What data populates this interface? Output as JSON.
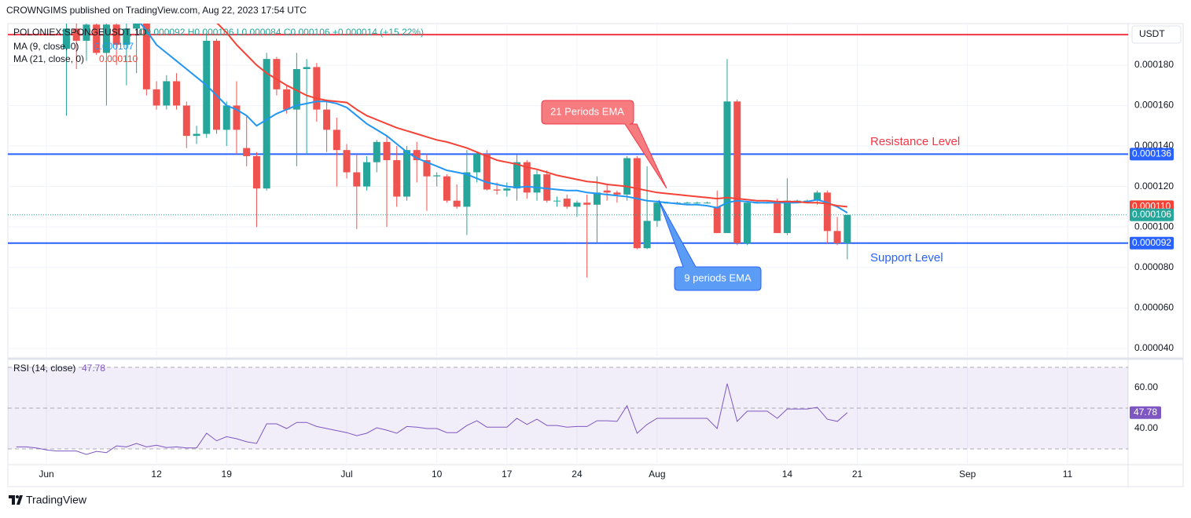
{
  "header": {
    "publisher": "CROWNGIMS published on TradingView.com, Aug 22, 2023 17:54 UTC"
  },
  "footer": {
    "brand": "TradingView"
  },
  "chart_data": {
    "type": "candlestick",
    "symbol": "POLONIEX:SPONGEUSDT, 1D",
    "ohlc_legend": "O0.000092 H0.000106 L0.000084 C0.000106 +0.000014 (+15.22%)",
    "currency": "USDT",
    "categories": [
      null,
      null,
      null,
      "Jun",
      null,
      null,
      null,
      null,
      null,
      null,
      null,
      null,
      null,
      null,
      "12",
      null,
      null,
      null,
      null,
      null,
      null,
      "19",
      null,
      null,
      null,
      null,
      null,
      null,
      null,
      null,
      null,
      null,
      null,
      "Jul",
      null,
      null,
      null,
      null,
      null,
      null,
      null,
      null,
      "10",
      null,
      null,
      null,
      null,
      null,
      null,
      "17",
      null,
      null,
      null,
      null,
      null,
      null,
      "24",
      null,
      null,
      null,
      null,
      null,
      null,
      null,
      "Aug",
      null,
      null,
      null,
      null,
      null,
      null,
      null,
      null,
      null,
      null,
      null,
      null,
      "14",
      null,
      null,
      null,
      null,
      null,
      null,
      "21",
      null,
      null,
      null,
      null,
      null,
      null,
      null,
      null,
      null,
      null,
      "Sep",
      null,
      null,
      null,
      null,
      null,
      null,
      null,
      null,
      null,
      "11",
      null,
      null,
      null,
      null,
      null,
      null
    ],
    "open": [
      null,
      null,
      null,
      null,
      null,
      0.000188,
      0.000198,
      0.000192,
      0.0002,
      0.000186,
      0.0002,
      0.00019,
      0.000198,
      0.000204,
      0.000168,
      0.00016,
      0.000172,
      0.00016,
      0.000145,
      0.000146,
      0.000192,
      0.000148,
      0.00016,
      0.000139,
      0.000135,
      0.000119,
      0.000183,
      0.000168,
      0.000158,
      0.000178,
      0.000179,
      0.000158,
      0.000148,
      0.000138,
      0.000127,
      0.00012,
      0.000132,
      0.000142,
      0.000133,
      0.000115,
      0.000138,
      0.000133,
      0.000125,
      0.000125,
      0.000113,
      0.00011,
      0.000127,
      0.000136,
      0.0001185,
      0.000118,
      0.000119,
      0.000132,
      0.000117,
      0.000126,
      0.000113,
      0.000114,
      0.00011,
      0.000112,
      0.000111,
      0.000118,
      0.000117,
      0.000116,
      0.000134,
      8.95e-05,
      0.000103,
      0.000112,
      0.000112,
      0.000112,
      0.000112,
      0.000112,
      0.00011,
      9.7e-05,
      0.000162,
      9.2e-05,
      0.000112,
      0.000112,
      0.000112,
      9.7e-05,
      0.000113,
      0.000113,
      0.000113,
      0.000117,
      9.8e-05,
      9.2e-05,
      null,
      null,
      null,
      null,
      null,
      null,
      null,
      null,
      null,
      null,
      null,
      null,
      null,
      null,
      null,
      null,
      null,
      null,
      null,
      null,
      null,
      null,
      null,
      null,
      null,
      null,
      null,
      null
    ],
    "high": [
      null,
      null,
      null,
      null,
      null,
      0.000205,
      0.000206,
      0.000205,
      0.00021,
      0.000205,
      0.000208,
      0.000206,
      0.000208,
      0.000208,
      0.000172,
      0.000175,
      0.000176,
      0.000162,
      0.00015,
      0.000195,
      0.000193,
      0.000162,
      0.000172,
      0.000155,
      0.000137,
      0.000186,
      0.000184,
      0.00017,
      0.000186,
      0.000183,
      0.000181,
      0.000163,
      0.000154,
      0.000141,
      0.000136,
      0.000135,
      0.000143,
      0.000145,
      0.00014,
      0.00014,
      0.000142,
      0.000136,
      0.000127,
      0.000126,
      0.000121,
      0.000138,
      0.000137,
      0.000138,
      0.000122,
      0.000122,
      0.000136,
      0.000133,
      0.000128,
      0.000128,
      0.000115,
      0.000116,
      0.000113,
      0.000116,
      0.000125,
      0.000121,
      0.000118,
      0.000135,
      0.000135,
      0.00013,
      0.000113,
      0.0001125,
      0.0001125,
      0.0001125,
      0.0001125,
      0.0001125,
      0.000118,
      0.000183,
      0.000163,
      0.000112,
      0.0001125,
      0.0001125,
      0.000114,
      0.000124,
      0.0001135,
      0.0001135,
      0.000118,
      0.000118,
      0.000105,
      0.000106,
      null,
      null,
      null,
      null,
      null,
      null,
      null,
      null,
      null,
      null,
      null,
      null,
      null,
      null,
      null,
      null,
      null,
      null,
      null,
      null,
      null,
      null,
      null,
      null,
      null,
      null,
      null,
      null
    ],
    "low": [
      null,
      null,
      null,
      null,
      null,
      0.000155,
      0.000178,
      0.000182,
      0.000185,
      0.00016,
      0.00018,
      0.00017,
      0.000176,
      0.000165,
      0.000158,
      0.000158,
      0.000158,
      0.000139,
      0.000141,
      0.000144,
      0.000146,
      0.00014,
      0.000136,
      0.00013,
      0.0001,
      0.000118,
      0.000165,
      0.000156,
      0.00013,
      0.000136,
      0.000152,
      0.000137,
      0.00012,
      0.000124,
      9.9e-05,
      0.000118,
      0.000127,
      0.0001,
      0.00011,
      0.000113,
      0.000122,
      0.000108,
      0.00012,
      0.000112,
      0.000109,
      9.6e-05,
      0.000122,
      0.000118,
      0.000116,
      0.000115,
      0.000113,
      0.000114,
      0.000113,
      0.000112,
      0.00011,
      0.000109,
      0.000105,
      7.5e-05,
      9.2e-05,
      0.000113,
      0.000112,
      0.000113,
      8.9e-05,
      8.9e-05,
      0.0001,
      0.0001115,
      0.0001115,
      0.0001115,
      0.0001115,
      0.0001115,
      9.7e-05,
      9.7e-05,
      9.1e-05,
      9.1e-05,
      0.0001115,
      0.0001115,
      9.7e-05,
      9.6e-05,
      0.0001125,
      0.0001125,
      0.000111,
      9.2e-05,
      9.1e-05,
      8.4e-05,
      null,
      null,
      null,
      null,
      null,
      null,
      null,
      null,
      null,
      null,
      null,
      null,
      null,
      null,
      null,
      null,
      null,
      null,
      null,
      null,
      null,
      null,
      null,
      null,
      null,
      null,
      null,
      null
    ],
    "close": [
      null,
      null,
      null,
      null,
      null,
      0.000198,
      0.000192,
      0.0002,
      0.000186,
      0.0002,
      0.00019,
      0.000198,
      0.000205,
      0.000168,
      0.00016,
      0.000172,
      0.00016,
      0.000145,
      0.000146,
      0.000192,
      0.000148,
      0.00016,
      0.000148,
      0.000135,
      0.000119,
      0.000183,
      0.000168,
      0.000158,
      0.000178,
      0.000179,
      0.000158,
      0.000148,
      0.000138,
      0.000127,
      0.00012,
      0.000132,
      0.000142,
      0.000133,
      0.000115,
      0.000138,
      0.000133,
      0.000125,
      0.0001255,
      0.000113,
      0.00011,
      0.000127,
      0.000136,
      0.0001185,
      0.000118,
      0.000119,
      0.000132,
      0.000117,
      0.000126,
      0.000113,
      0.000113,
      0.00011,
      0.000112,
      0.000111,
      0.000117,
      0.000117,
      0.000116,
      0.000134,
      8.95e-05,
      0.000103,
      0.000112,
      0.000112,
      0.000112,
      0.000112,
      0.000112,
      0.000112,
      9.7e-05,
      0.000162,
      9.2e-05,
      0.000112,
      0.000112,
      0.000112,
      9.7e-05,
      0.000113,
      0.000113,
      0.000113,
      0.000117,
      9.8e-05,
      9.2e-05,
      0.000106,
      null,
      null,
      null,
      null,
      null,
      null,
      null,
      null,
      null,
      null,
      null,
      null,
      null,
      null,
      null,
      null,
      null,
      null,
      null,
      null,
      null,
      null,
      null,
      null,
      null,
      null,
      null,
      null
    ],
    "close_label": "0.000106",
    "up_color": "#26a69a",
    "down_color": "#ef5350",
    "series": [
      {
        "name": "MA (9, close, 0)",
        "color": "#2196f3",
        "value_label": "0.000107",
        "values": [
          null,
          null,
          null,
          null,
          null,
          null,
          null,
          null,
          null,
          null,
          null,
          null,
          0.000203,
          0.000197,
          0.00019,
          0.000186,
          0.000182,
          0.000178,
          0.000174,
          0.00017,
          0.000165,
          0.00016,
          0.000158,
          0.000155,
          0.00015,
          0.000153,
          0.000156,
          0.000158,
          0.00016,
          0.000161,
          0.000162,
          0.000162,
          0.000161,
          0.000159,
          0.000155,
          0.000151,
          0.000148,
          0.000145,
          0.000141,
          0.000137,
          0.000134,
          0.000132,
          0.00013,
          0.000128,
          0.000127,
          0.000126,
          0.000124,
          0.000122,
          0.000121,
          0.00012,
          0.0001195,
          0.00012,
          0.0001195,
          0.000119,
          0.0001185,
          0.000118,
          0.000118,
          0.000117,
          0.0001165,
          0.000116,
          0.0001155,
          0.000115,
          0.000114,
          0.000113,
          0.0001125,
          0.000112,
          0.0001115,
          0.000111,
          0.000111,
          0.0001105,
          0.0001095,
          0.000112,
          0.000113,
          0.0001125,
          0.000112,
          0.000112,
          0.000112,
          0.000112,
          0.000112,
          0.0001125,
          0.0001135,
          0.000112,
          0.00011,
          0.000107,
          null,
          null,
          null,
          null,
          null,
          null,
          null,
          null,
          null,
          null,
          null,
          null,
          null,
          null,
          null,
          null,
          null,
          null,
          null,
          null,
          null,
          null,
          null,
          null,
          null,
          null,
          null,
          null
        ]
      },
      {
        "name": "MA (21, close, 0)",
        "color": "#f44336",
        "value_label": "0.000110",
        "values": [
          null,
          null,
          null,
          null,
          null,
          null,
          null,
          null,
          null,
          null,
          null,
          null,
          null,
          null,
          null,
          null,
          null,
          null,
          null,
          null,
          0.000201,
          0.000196,
          0.00019,
          0.000185,
          0.00018,
          0.000176,
          0.000173,
          0.00017,
          0.0001675,
          0.000165,
          0.0001635,
          0.0001625,
          0.000162,
          0.0001615,
          0.000158,
          0.000155,
          0.000153,
          0.000151,
          0.000149,
          0.0001475,
          0.000146,
          0.0001445,
          0.000143,
          0.000142,
          0.0001405,
          0.000139,
          0.000137,
          0.000135,
          0.000133,
          0.000132,
          0.000131,
          0.0001295,
          0.0001285,
          0.000127,
          0.0001255,
          0.0001245,
          0.0001235,
          0.0001225,
          0.000122,
          0.000121,
          0.0001205,
          0.00012,
          0.000119,
          0.000118,
          0.000117,
          0.0001165,
          0.000116,
          0.0001155,
          0.000115,
          0.0001145,
          0.000114,
          0.0001145,
          0.000114,
          0.0001135,
          0.000113,
          0.000113,
          0.0001125,
          0.0001125,
          0.0001125,
          0.000112,
          0.000112,
          0.0001115,
          0.0001105,
          0.00011,
          null,
          null,
          null,
          null,
          null,
          null,
          null,
          null,
          null,
          null,
          null,
          null,
          null,
          null,
          null,
          null,
          null,
          null,
          null,
          null,
          null,
          null,
          null,
          null,
          null,
          null,
          null,
          null
        ]
      }
    ],
    "ylim": [
      3.57e-05,
      0.0002005
    ],
    "yticks": [
      {
        "value": 4e-05,
        "label": "0.000040"
      },
      {
        "value": 6e-05,
        "label": "0.000060"
      },
      {
        "value": 8e-05,
        "label": "0.000080"
      },
      {
        "value": 0.0001,
        "label": "0.000100"
      },
      {
        "value": 0.00012,
        "label": "0.000120"
      },
      {
        "value": 0.00014,
        "label": "0.000140"
      },
      {
        "value": 0.00016,
        "label": "0.000160"
      },
      {
        "value": 0.00018,
        "label": "0.000180"
      }
    ],
    "grid": true,
    "hlines": [
      {
        "value": 0.000195,
        "color": "#f23645"
      },
      {
        "value": 0.000136,
        "color": "#2962ff",
        "label": "0.000136"
      },
      {
        "value": 9.2e-05,
        "color": "#2962ff",
        "label": "0.000092"
      }
    ],
    "annotations": [
      {
        "text": "21 Periods EMA",
        "color": "#f77c80"
      },
      {
        "text": "9 periods EMA",
        "color": "#5b9cf6"
      },
      {
        "text": "Resistance Level",
        "color": "#f23645"
      },
      {
        "text": "Support Level",
        "color": "#2962ff"
      }
    ],
    "rsi": {
      "name": "RSI (14, close)",
      "color": "#7e57c2",
      "values": [
        31,
        31,
        30.5,
        29.5,
        29,
        29,
        29,
        27.3,
        28.8,
        28.2,
        31.5,
        31,
        32.7,
        31,
        31.8,
        30.7,
        31,
        30.5,
        30.5,
        37.7,
        34,
        36,
        35,
        33.5,
        32.7,
        42.3,
        42.3,
        40,
        43,
        43,
        41,
        40,
        39,
        38,
        36.5,
        37.7,
        40.4,
        39.2,
        37.7,
        41,
        40.7,
        40,
        40,
        38,
        38,
        41.5,
        43.8,
        40.7,
        40.7,
        40.7,
        45,
        42,
        44.6,
        41.5,
        41.5,
        40.7,
        41,
        41,
        43.8,
        43.8,
        43.5,
        51.2,
        37.7,
        42,
        45,
        45,
        45,
        45,
        45,
        45,
        40,
        62,
        43.5,
        48.5,
        48.5,
        48.5,
        45,
        49.6,
        49.6,
        49.6,
        50.4,
        44.6,
        43.5,
        47.78,
        null,
        null,
        null,
        null,
        null,
        null,
        null,
        null,
        null,
        null,
        null,
        null,
        null,
        null,
        null,
        null,
        null,
        null,
        null,
        null,
        null,
        null,
        null,
        null,
        null,
        null,
        null,
        null
      ],
      "ylim": [
        22.3,
        73.1
      ],
      "yticks": [
        {
          "value": 40,
          "label": "40.00"
        },
        {
          "value": 60,
          "label": "60.00"
        }
      ],
      "levels": [
        70,
        50,
        30
      ]
    }
  }
}
